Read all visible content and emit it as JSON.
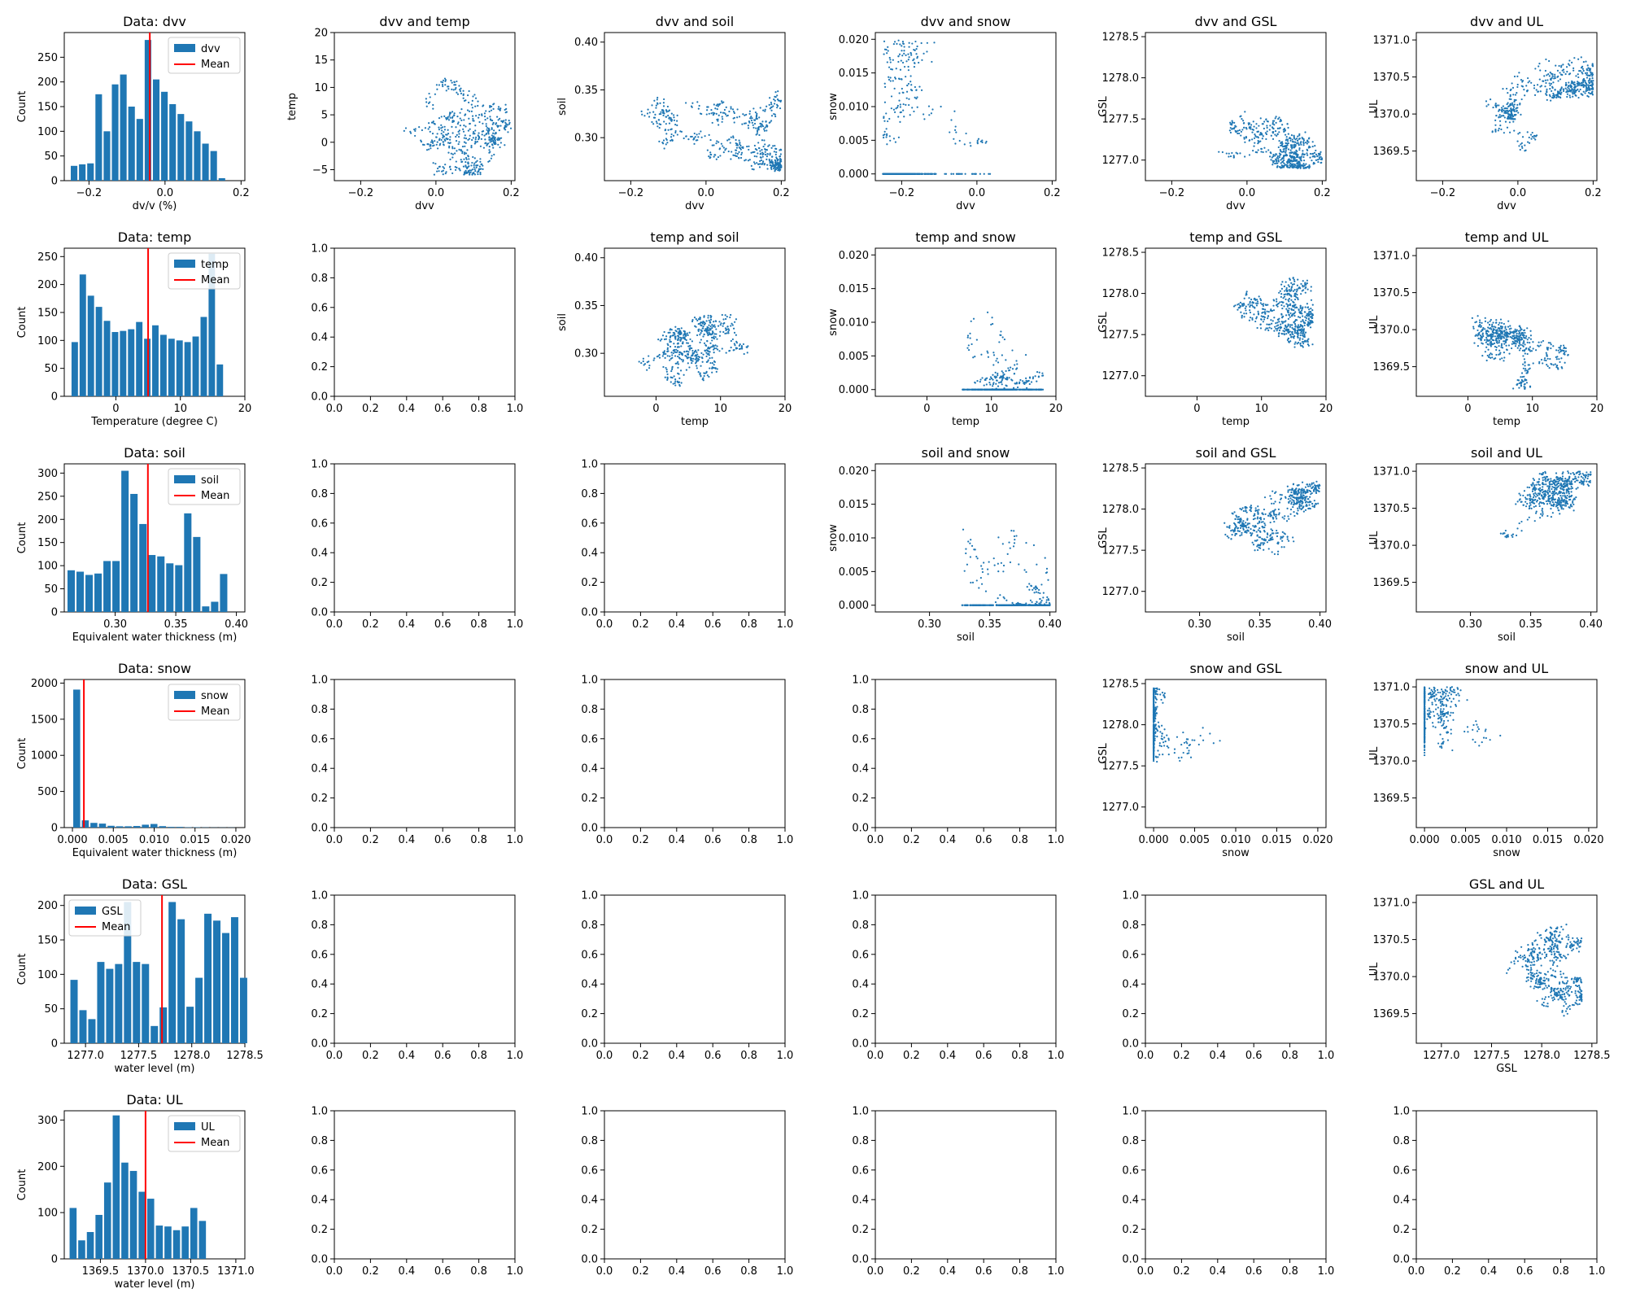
{
  "colors": {
    "primary": "#1f77b4",
    "mean": "#ff0000",
    "axis": "#000000"
  },
  "grid_layout": {
    "rows": 6,
    "cols": 6
  },
  "chart_data": [
    {
      "type": "bar",
      "title": "Data: dvv",
      "xlabel": "dv/v (%)",
      "ylabel": "Count",
      "xlim": [
        -0.265,
        0.21
      ],
      "ylim": [
        0,
        300
      ],
      "xticks": [
        -0.2,
        0,
        0.2
      ],
      "xticklabels": [
        "−0.2",
        "0.0",
        "0.2"
      ],
      "yticks": [
        0,
        50,
        100,
        150,
        200,
        250
      ],
      "bin_start": -0.25,
      "bin_width": 0.0216,
      "values": [
        30,
        33,
        35,
        175,
        100,
        195,
        215,
        150,
        125,
        285,
        205,
        180,
        155,
        135,
        120,
        100,
        75,
        60,
        5
      ],
      "mean": -0.04,
      "legend": [
        "dvv",
        "Mean"
      ],
      "legend_position": "top-right"
    },
    {
      "type": "scatter",
      "title": "dvv and temp",
      "xlabel": "dvv",
      "ylabel": "temp",
      "xlim": [
        -0.27,
        0.21
      ],
      "ylim": [
        -7,
        20
      ],
      "xticks": [
        -0.2,
        0,
        0.2
      ],
      "xticklabels": [
        "−0.2",
        "0.0",
        "0.2"
      ],
      "yticks": [
        -5,
        0,
        5,
        10,
        15,
        20
      ],
      "yticklabels": [
        "−5",
        "0",
        "5",
        "10",
        "15",
        "20"
      ],
      "ranges": {
        "x": [
          -0.26,
          0.2
        ],
        "y": [
          -6,
          18
        ]
      }
    },
    {
      "type": "scatter",
      "title": "dvv and soil",
      "xlabel": "dvv",
      "ylabel": "soil",
      "xlim": [
        -0.27,
        0.21
      ],
      "ylim": [
        0.255,
        0.41
      ],
      "xticks": [
        -0.2,
        0,
        0.2
      ],
      "xticklabels": [
        "−0.2",
        "0.0",
        "0.2"
      ],
      "yticks": [
        0.3,
        0.35,
        0.4
      ],
      "yticklabels": [
        "0.30",
        "0.35",
        "0.40"
      ],
      "ranges": {
        "x": [
          -0.25,
          0.2
        ],
        "y": [
          0.265,
          0.4
        ]
      }
    },
    {
      "type": "scatter",
      "title": "dvv and snow",
      "xlabel": "dvv",
      "ylabel": "snow",
      "xlim": [
        -0.27,
        0.21
      ],
      "ylim": [
        -0.001,
        0.021
      ],
      "xticks": [
        -0.2,
        0,
        0.2
      ],
      "xticklabels": [
        "−0.2",
        "0.0",
        "0.2"
      ],
      "yticks": [
        0,
        0.005,
        0.01,
        0.015,
        0.02
      ],
      "yticklabels": [
        "0.000",
        "0.005",
        "0.010",
        "0.015",
        "0.020"
      ],
      "ranges": {
        "x": [
          -0.25,
          0.2
        ],
        "y": [
          0,
          0.02
        ]
      }
    },
    {
      "type": "scatter",
      "title": "dvv and GSL",
      "xlabel": "dvv",
      "ylabel": "GSL",
      "xlim": [
        -0.27,
        0.21
      ],
      "ylim": [
        1276.75,
        1278.55
      ],
      "xticks": [
        -0.2,
        0,
        0.2
      ],
      "xticklabels": [
        "−0.2",
        "0.0",
        "0.2"
      ],
      "yticks": [
        1277,
        1277.5,
        1278,
        1278.5
      ],
      "yticklabels": [
        "1277.0",
        "1277.5",
        "1278.0",
        "1278.5"
      ],
      "ranges": {
        "x": [
          -0.23,
          0.2
        ],
        "y": [
          1276.9,
          1278.35
        ]
      }
    },
    {
      "type": "scatter",
      "title": "dvv and UL",
      "xlabel": "dvv",
      "ylabel": "UL",
      "xlim": [
        -0.27,
        0.21
      ],
      "ylim": [
        1369.1,
        1371.1
      ],
      "xticks": [
        -0.2,
        0,
        0.2
      ],
      "xticklabels": [
        "−0.2",
        "0.0",
        "0.2"
      ],
      "yticks": [
        1369.5,
        1370,
        1370.5,
        1371
      ],
      "yticklabels": [
        "1369.5",
        "1370.0",
        "1370.5",
        "1371.0"
      ],
      "ranges": {
        "x": [
          -0.24,
          0.2
        ],
        "y": [
          1369.2,
          1371
        ]
      }
    },
    {
      "type": "bar",
      "title": "Data: temp",
      "xlabel": "Temperature (degree C)",
      "ylabel": "Count",
      "xlim": [
        -8,
        20
      ],
      "ylim": [
        0,
        265
      ],
      "xticks": [
        0,
        10,
        20
      ],
      "xticklabels": [
        "0",
        "10",
        "20"
      ],
      "yticks": [
        0,
        50,
        100,
        150,
        200,
        250
      ],
      "bin_start": -7,
      "bin_width": 1.25,
      "values": [
        97,
        218,
        180,
        160,
        135,
        115,
        117,
        120,
        133,
        103,
        127,
        110,
        103,
        100,
        97,
        107,
        142,
        255,
        57
      ],
      "mean": 5,
      "legend": [
        "temp",
        "Mean"
      ],
      "legend_position": "top-right"
    },
    {
      "type": "empty"
    },
    {
      "type": "scatter",
      "title": "temp and soil",
      "xlabel": "temp",
      "ylabel": "soil",
      "xlim": [
        -8,
        20
      ],
      "ylim": [
        0.255,
        0.41
      ],
      "xticks": [
        0,
        10,
        20
      ],
      "xticklabels": [
        "0",
        "10",
        "20"
      ],
      "yticks": [
        0.3,
        0.35,
        0.4
      ],
      "yticklabels": [
        "0.30",
        "0.35",
        "0.40"
      ],
      "ranges": {
        "x": [
          -6,
          18
        ],
        "y": [
          0.265,
          0.4
        ]
      }
    },
    {
      "type": "scatter",
      "title": "temp and snow",
      "xlabel": "temp",
      "ylabel": "snow",
      "xlim": [
        -8,
        20
      ],
      "ylim": [
        -0.001,
        0.021
      ],
      "xticks": [
        0,
        10,
        20
      ],
      "xticklabels": [
        "0",
        "10",
        "20"
      ],
      "yticks": [
        0,
        0.005,
        0.01,
        0.015,
        0.02
      ],
      "yticklabels": [
        "0.000",
        "0.005",
        "0.010",
        "0.015",
        "0.020"
      ],
      "ranges": {
        "x": [
          -6,
          18
        ],
        "y": [
          0,
          0.02
        ]
      }
    },
    {
      "type": "scatter",
      "title": "temp and GSL",
      "xlabel": "temp",
      "ylabel": "GSL",
      "xlim": [
        -8,
        20
      ],
      "ylim": [
        1276.75,
        1278.55
      ],
      "xticks": [
        0,
        10,
        20
      ],
      "xticklabels": [
        "0",
        "10",
        "20"
      ],
      "yticks": [
        1277,
        1277.5,
        1278,
        1278.5
      ],
      "yticklabels": [
        "1277.0",
        "1277.5",
        "1278.0",
        "1278.5"
      ],
      "ranges": {
        "x": [
          -6,
          18
        ],
        "y": [
          1276.9,
          1278.4
        ]
      }
    },
    {
      "type": "scatter",
      "title": "temp and UL",
      "xlabel": "temp",
      "ylabel": "UL",
      "xlim": [
        -8,
        20
      ],
      "ylim": [
        1369.1,
        1371.1
      ],
      "xticks": [
        0,
        10,
        20
      ],
      "xticklabels": [
        "0",
        "10",
        "20"
      ],
      "yticks": [
        1369.5,
        1370,
        1370.5,
        1371
      ],
      "yticklabels": [
        "1369.5",
        "1370.0",
        "1370.5",
        "1371.0"
      ],
      "ranges": {
        "x": [
          -6,
          18
        ],
        "y": [
          1369.2,
          1371
        ]
      }
    },
    {
      "type": "bar",
      "title": "Data: soil",
      "xlabel": "Equivalent water thickness (m)",
      "ylabel": "Count",
      "xlim": [
        0.258,
        0.407
      ],
      "ylim": [
        0,
        320
      ],
      "xticks": [
        0.3,
        0.35,
        0.4
      ],
      "xticklabels": [
        "0.30",
        "0.35",
        "0.40"
      ],
      "yticks": [
        0,
        50,
        100,
        150,
        200,
        250,
        300
      ],
      "bin_start": 0.26,
      "bin_width": 0.0074,
      "values": [
        90,
        87,
        80,
        83,
        110,
        110,
        305,
        255,
        190,
        123,
        120,
        105,
        101,
        213,
        162,
        12,
        22,
        82
      ],
      "mean": 0.327,
      "legend": [
        "soil",
        "Mean"
      ],
      "legend_position": "top-right"
    },
    {
      "type": "empty"
    },
    {
      "type": "empty"
    },
    {
      "type": "scatter",
      "title": "soil and snow",
      "xlabel": "soil",
      "ylabel": "snow",
      "xlim": [
        0.255,
        0.405
      ],
      "ylim": [
        -0.001,
        0.021
      ],
      "xticks": [
        0.3,
        0.35,
        0.4
      ],
      "xticklabels": [
        "0.30",
        "0.35",
        "0.40"
      ],
      "yticks": [
        0,
        0.005,
        0.01,
        0.015,
        0.02
      ],
      "yticklabels": [
        "0.000",
        "0.005",
        "0.010",
        "0.015",
        "0.020"
      ],
      "ranges": {
        "x": [
          0.265,
          0.4
        ],
        "y": [
          0,
          0.02
        ]
      }
    },
    {
      "type": "scatter",
      "title": "soil and GSL",
      "xlabel": "soil",
      "ylabel": "GSL",
      "xlim": [
        0.255,
        0.405
      ],
      "ylim": [
        1276.75,
        1278.55
      ],
      "xticks": [
        0.3,
        0.35,
        0.4
      ],
      "xticklabels": [
        "0.30",
        "0.35",
        "0.40"
      ],
      "yticks": [
        1277,
        1277.5,
        1278,
        1278.5
      ],
      "yticklabels": [
        "1277.0",
        "1277.5",
        "1278.0",
        "1278.5"
      ],
      "ranges": {
        "x": [
          0.265,
          0.4
        ],
        "y": [
          1276.9,
          1278.4
        ]
      }
    },
    {
      "type": "scatter",
      "title": "soil and UL",
      "xlabel": "soil",
      "ylabel": "UL",
      "xlim": [
        0.255,
        0.405
      ],
      "ylim": [
        1369.1,
        1371.1
      ],
      "xticks": [
        0.3,
        0.35,
        0.4
      ],
      "xticklabels": [
        "0.30",
        "0.35",
        "0.40"
      ],
      "yticks": [
        1369.5,
        1370,
        1370.5,
        1371
      ],
      "yticklabels": [
        "1369.5",
        "1370.0",
        "1370.5",
        "1371.0"
      ],
      "ranges": {
        "x": [
          0.265,
          0.4
        ],
        "y": [
          1369.2,
          1371
        ]
      }
    },
    {
      "type": "bar",
      "title": "Data: snow",
      "xlabel": "Equivalent water thickness (m)",
      "ylabel": "Count",
      "xlim": [
        -0.001,
        0.0211
      ],
      "ylim": [
        0,
        2050
      ],
      "xticks": [
        0,
        0.005,
        0.01,
        0.015,
        0.02
      ],
      "xticklabels": [
        "0.000",
        "0.005",
        "0.010",
        "0.015",
        "0.020"
      ],
      "yticks": [
        0,
        500,
        1000,
        1500,
        2000
      ],
      "bin_start": 0,
      "bin_width": 0.00105,
      "values": [
        1910,
        100,
        65,
        55,
        25,
        18,
        18,
        22,
        40,
        50,
        20,
        10,
        10,
        5,
        5,
        3,
        2,
        2,
        2
      ],
      "mean": 0.0014,
      "legend": [
        "snow",
        "Mean"
      ],
      "legend_position": "top-right"
    },
    {
      "type": "empty"
    },
    {
      "type": "empty"
    },
    {
      "type": "empty"
    },
    {
      "type": "scatter",
      "title": "snow and GSL",
      "xlabel": "snow",
      "ylabel": "GSL",
      "xlim": [
        -0.001,
        0.021
      ],
      "ylim": [
        1276.75,
        1278.55
      ],
      "xticks": [
        0,
        0.005,
        0.01,
        0.015,
        0.02
      ],
      "xticklabels": [
        "0.000",
        "0.005",
        "0.010",
        "0.015",
        "0.020"
      ],
      "yticks": [
        1277,
        1277.5,
        1278,
        1278.5
      ],
      "yticklabels": [
        "1277.0",
        "1277.5",
        "1278.0",
        "1278.5"
      ],
      "ranges": {
        "x": [
          0,
          0.02
        ],
        "y": [
          1276.85,
          1278.45
        ]
      }
    },
    {
      "type": "scatter",
      "title": "snow and UL",
      "xlabel": "snow",
      "ylabel": "UL",
      "xlim": [
        -0.001,
        0.021
      ],
      "ylim": [
        1369.1,
        1371.1
      ],
      "xticks": [
        0,
        0.005,
        0.01,
        0.015,
        0.02
      ],
      "xticklabels": [
        "0.000",
        "0.005",
        "0.010",
        "0.015",
        "0.020"
      ],
      "yticks": [
        1369.5,
        1370,
        1370.5,
        1371
      ],
      "yticklabels": [
        "1369.5",
        "1370.0",
        "1370.5",
        "1371.0"
      ],
      "ranges": {
        "x": [
          0,
          0.02
        ],
        "y": [
          1369.2,
          1371
        ]
      }
    },
    {
      "type": "bar",
      "title": "Data: GSL",
      "xlabel": "water level (m)",
      "ylabel": "Count",
      "xlim": [
        1276.8,
        1278.5
      ],
      "ylim": [
        0,
        215
      ],
      "xticks": [
        1277,
        1277.5,
        1278,
        1278.5
      ],
      "xticklabels": [
        "1277.0",
        "1277.5",
        "1278.0",
        "1278.5"
      ],
      "yticks": [
        0,
        50,
        100,
        150,
        200
      ],
      "bin_start": 1276.85,
      "bin_width": 0.084,
      "values": [
        92,
        48,
        35,
        118,
        108,
        115,
        205,
        118,
        115,
        25,
        52,
        205,
        180,
        53,
        95,
        188,
        178,
        160,
        183,
        95
      ],
      "mean": 1277.72,
      "legend": [
        "GSL",
        "Mean"
      ],
      "legend_position": "top-left"
    },
    {
      "type": "empty"
    },
    {
      "type": "empty"
    },
    {
      "type": "empty"
    },
    {
      "type": "empty"
    },
    {
      "type": "scatter",
      "title": "GSL and UL",
      "xlabel": "GSL",
      "ylabel": "UL",
      "xlim": [
        1276.75,
        1278.55
      ],
      "ylim": [
        1369.1,
        1371.1
      ],
      "xticks": [
        1277,
        1277.5,
        1278,
        1278.5
      ],
      "xticklabels": [
        "1277.0",
        "1277.5",
        "1278.0",
        "1278.5"
      ],
      "yticks": [
        1369.5,
        1370,
        1370.5,
        1371
      ],
      "yticklabels": [
        "1369.5",
        "1370.0",
        "1370.5",
        "1371.0"
      ],
      "ranges": {
        "x": [
          1276.85,
          1278.4
        ],
        "y": [
          1369.2,
          1371
        ]
      }
    },
    {
      "type": "bar",
      "title": "Data: UL",
      "xlabel": "water level (m)",
      "ylabel": "Count",
      "xlim": [
        1369.1,
        1371.1
      ],
      "ylim": [
        0,
        320
      ],
      "xticks": [
        1369.5,
        1370,
        1370.5,
        1371
      ],
      "xticklabels": [
        "1369.5",
        "1370.0",
        "1370.5",
        "1371.0"
      ],
      "yticks": [
        0,
        100,
        200,
        300
      ],
      "bin_start": 1369.15,
      "bin_width": 0.0955,
      "values": [
        110,
        40,
        58,
        95,
        165,
        310,
        208,
        190,
        145,
        130,
        72,
        70,
        62,
        70,
        110,
        82
      ],
      "mean": 1370.0,
      "legend": [
        "UL",
        "Mean"
      ],
      "legend_position": "top-right"
    },
    {
      "type": "empty"
    },
    {
      "type": "empty"
    },
    {
      "type": "empty"
    },
    {
      "type": "empty"
    },
    {
      "type": "empty"
    }
  ],
  "empty_axes": {
    "ticks": [
      0,
      0.2,
      0.4,
      0.6,
      0.8,
      1.0
    ],
    "ticklabels": [
      "0.0",
      "0.2",
      "0.4",
      "0.6",
      "0.8",
      "1.0"
    ]
  }
}
